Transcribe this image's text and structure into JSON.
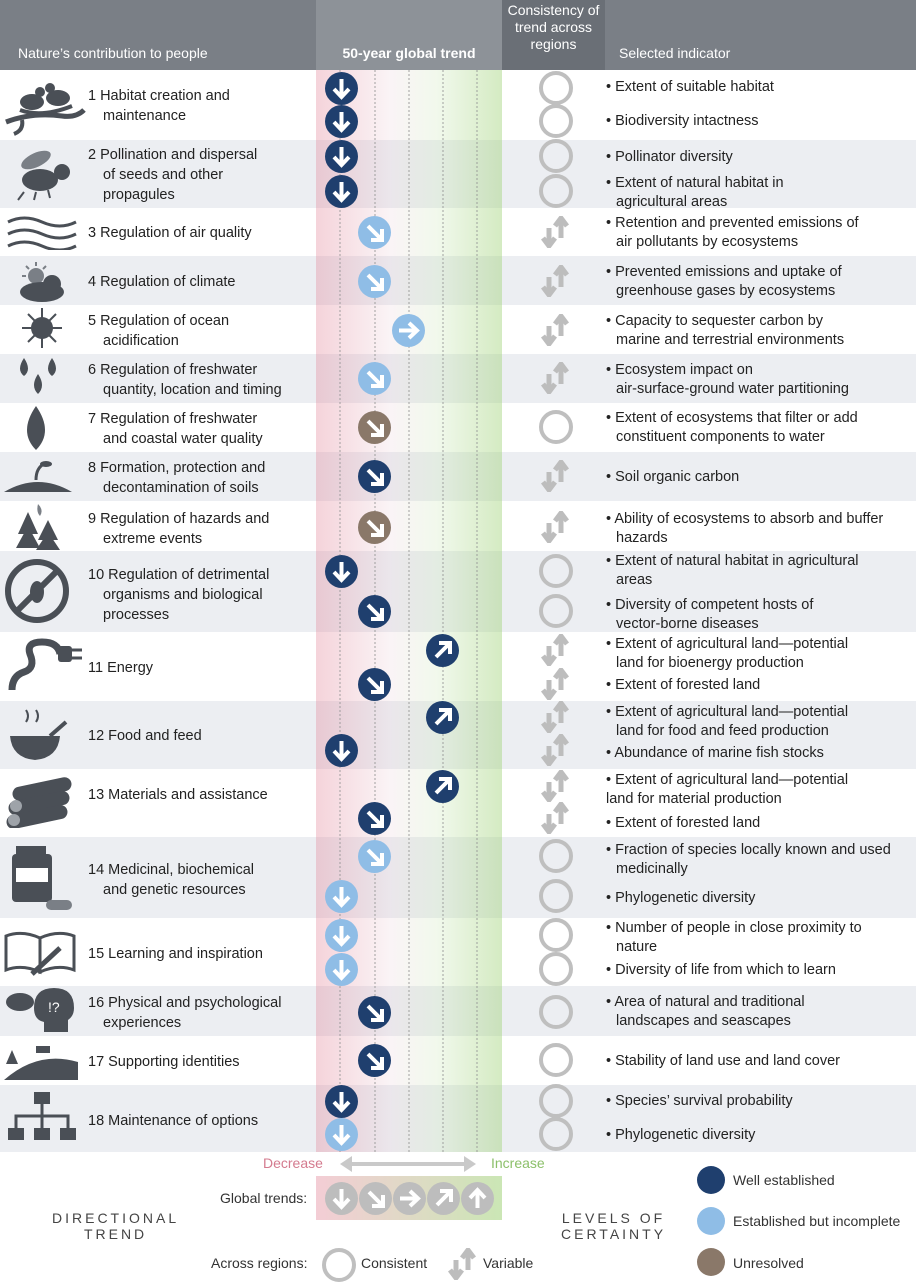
{
  "header": {
    "left": "Nature’s contribution to people",
    "trend": "50-year global trend",
    "consistency": [
      "Consistency of",
      "trend across",
      "regions"
    ],
    "indicator": "Selected indicator"
  },
  "rows": [
    {
      "num": "1",
      "title": [
        "Habitat creation and",
        "maintenance"
      ],
      "indicators": [
        [
          "Extent of suitable habitat"
        ],
        [
          "Biodiversity intactness"
        ]
      ]
    },
    {
      "num": "2",
      "title": [
        "Pollination and dispersal",
        "of seeds and other",
        "propagules"
      ],
      "indicators": [
        [
          "Pollinator diversity"
        ],
        [
          "Extent of natural habitat in",
          "agricultural areas"
        ]
      ]
    },
    {
      "num": "3",
      "title": [
        "Regulation of air quality"
      ],
      "indicators": [
        [
          "Retention and prevented emissions of",
          "air pollutants by ecosystems"
        ]
      ]
    },
    {
      "num": "4",
      "title": [
        "Regulation of climate"
      ],
      "indicators": [
        [
          "Prevented emissions and uptake of",
          "greenhouse gases by ecosystems"
        ]
      ]
    },
    {
      "num": "5",
      "title": [
        "Regulation of ocean",
        "acidification"
      ],
      "indicators": [
        [
          "Capacity to sequester carbon by",
          "marine and terrestrial environments"
        ]
      ]
    },
    {
      "num": "6",
      "title": [
        "Regulation of freshwater",
        "quantity, location and timing"
      ],
      "indicators": [
        [
          "Ecosystem impact on",
          "air-surface-ground water partitioning"
        ]
      ]
    },
    {
      "num": "7",
      "title": [
        "Regulation of freshwater",
        "and coastal water quality"
      ],
      "indicators": [
        [
          "Extent of ecosystems that filter or add",
          "constituent components to water"
        ]
      ]
    },
    {
      "num": "8",
      "title": [
        "Formation, protection and",
        "decontamination of soils"
      ],
      "indicators": [
        [
          "Soil organic carbon"
        ]
      ]
    },
    {
      "num": "9",
      "title": [
        "Regulation of hazards and",
        "extreme events"
      ],
      "indicators": [
        [
          "Ability of ecosystems to absorb and buffer",
          "hazards"
        ]
      ]
    },
    {
      "num": "10",
      "title": [
        "Regulation of detrimental",
        "organisms and biological",
        "processes"
      ],
      "indicators": [
        [
          "Extent of natural habitat in agricultural",
          "areas"
        ],
        [
          "Diversity of competent hosts of",
          "vector-borne diseases"
        ]
      ]
    },
    {
      "num": "11",
      "title": [
        "Energy"
      ],
      "indicators": [
        [
          "Extent of agricultural land—potential",
          "land for bioenergy production"
        ],
        [
          "Extent of forested land"
        ]
      ]
    },
    {
      "num": "12",
      "title": [
        "Food and feed"
      ],
      "indicators": [
        [
          "Extent of agricultural land—potential",
          "land for food and feed production"
        ],
        [
          "Abundance of marine fish stocks"
        ]
      ]
    },
    {
      "num": "13",
      "title": [
        "Materials and assistance"
      ],
      "indicators": [
        [
          "Extent of agricultural land—potential",
          "land for material production"
        ],
        [
          "Extent of forested land"
        ]
      ]
    },
    {
      "num": "14",
      "title": [
        "Medicinal, biochemical",
        "and genetic resources"
      ],
      "indicators": [
        [
          "Fraction of species locally known and used",
          "medicinally"
        ],
        [
          "Phylogenetic diversity"
        ]
      ]
    },
    {
      "num": "15",
      "title": [
        "Learning and inspiration"
      ],
      "indicators": [
        [
          "Number of people in close proximity to",
          "nature"
        ],
        [
          "Diversity of life from which to learn"
        ]
      ]
    },
    {
      "num": "16",
      "title": [
        "Physical and psychological",
        "experiences"
      ],
      "indicators": [
        [
          "Area of natural and traditional",
          "landscapes and seascapes"
        ]
      ]
    },
    {
      "num": "17",
      "title": [
        "Supporting identities"
      ],
      "indicators": [
        [
          "Stability of land use and land cover"
        ]
      ]
    },
    {
      "num": "18",
      "title": [
        "Maintenance of options"
      ],
      "indicators": [
        [
          "Species’ survival probability"
        ],
        [
          "Phylogenetic diversity"
        ]
      ]
    }
  ],
  "legend": {
    "decrease": "Decrease",
    "increase": "Increase",
    "global_trends": "Global trends:",
    "directional": [
      "DIRECTIONAL",
      "TREND"
    ],
    "levels": [
      "LEVELS OF",
      "CERTAINTY"
    ],
    "across_regions": "Across regions:",
    "consistent": "Consistent",
    "variable": "Variable",
    "well_established": "Well established",
    "established_incomplete": "Established but incomplete",
    "unresolved": "Unresolved"
  },
  "colors": {
    "well_established": "#1f3f6e",
    "established_incomplete": "#8fbde6",
    "unresolved": "#8a7869",
    "decrease": "#d47b8f",
    "increase": "#8cc06a"
  }
}
